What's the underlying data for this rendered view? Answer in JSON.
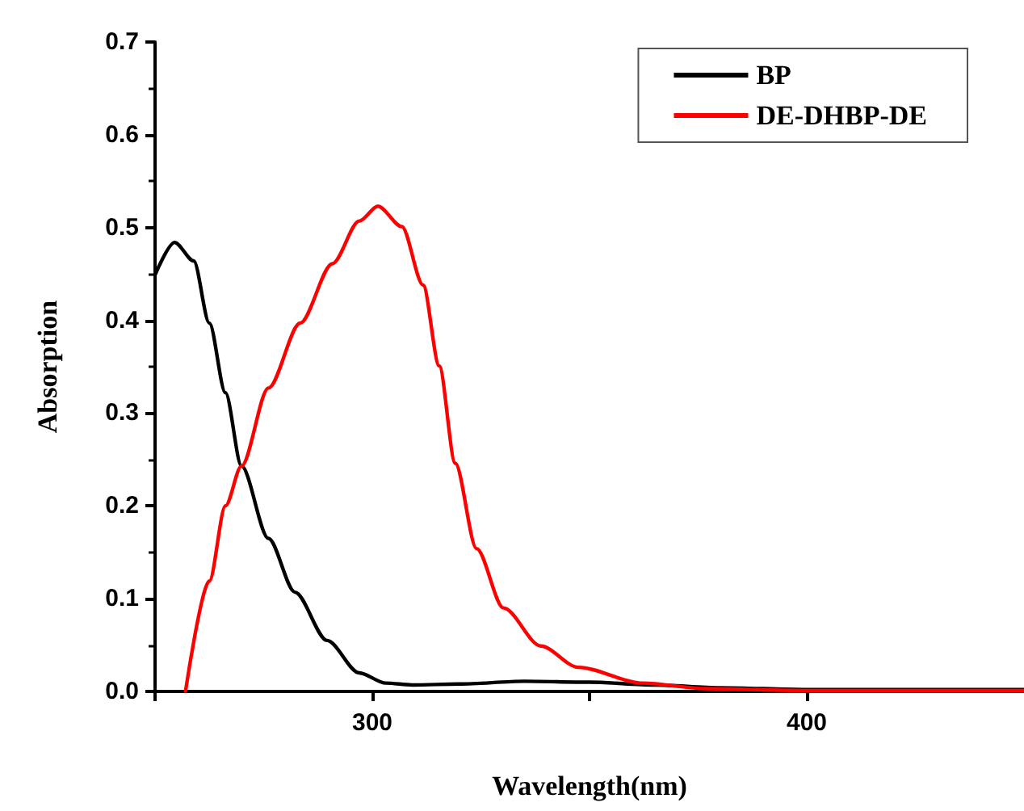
{
  "chart_data": {
    "type": "line",
    "xlabel": "Wavelength(nm)",
    "ylabel": "Absorption",
    "xlim": [
      250,
      450
    ],
    "xticks": [
      {
        "value": 250,
        "label": null
      },
      300,
      {
        "value": 350,
        "label": null
      },
      400
    ],
    "ylim": [
      0,
      0.7
    ],
    "yticks": [
      {
        "value": 0,
        "label": "0.0"
      },
      0.1,
      0.2,
      0.3,
      0.4,
      0.5,
      0.6,
      0.7
    ],
    "grid": false,
    "legend": "top right",
    "marker": "none",
    "line_style": "solid",
    "series": [
      {
        "name": "BP",
        "color": "#000000",
        "x": [
          250,
          254.5,
          258.9,
          262.5,
          266.2,
          269.9,
          276.1,
          282.2,
          289.6,
          297,
          303.1,
          309.3,
          320,
          335,
          350,
          365,
          380,
          400,
          450
        ],
        "values": [
          0.449,
          0.484,
          0.464,
          0.397,
          0.322,
          0.243,
          0.165,
          0.107,
          0.055,
          0.02,
          0.009,
          0.007,
          0.008,
          0.011,
          0.01,
          0.007,
          0.004,
          0.002,
          0.002
        ]
      },
      {
        "name": "DE-DHBP-DE",
        "color": "#ff0000",
        "x": [
          257,
          262.5,
          266.2,
          269.9,
          276.1,
          283.4,
          290.8,
          297,
          301.3,
          306.8,
          311.7,
          315.4,
          319.1,
          324,
          330.2,
          338.8,
          347.4,
          362.2,
          376.9,
          400,
          450
        ],
        "values": [
          0,
          0.119,
          0.2,
          0.243,
          0.327,
          0.397,
          0.461,
          0.507,
          0.523,
          0.501,
          0.438,
          0.351,
          0.246,
          0.154,
          0.09,
          0.049,
          0.026,
          0.009,
          0.003,
          0.001,
          0.001
        ]
      }
    ]
  }
}
